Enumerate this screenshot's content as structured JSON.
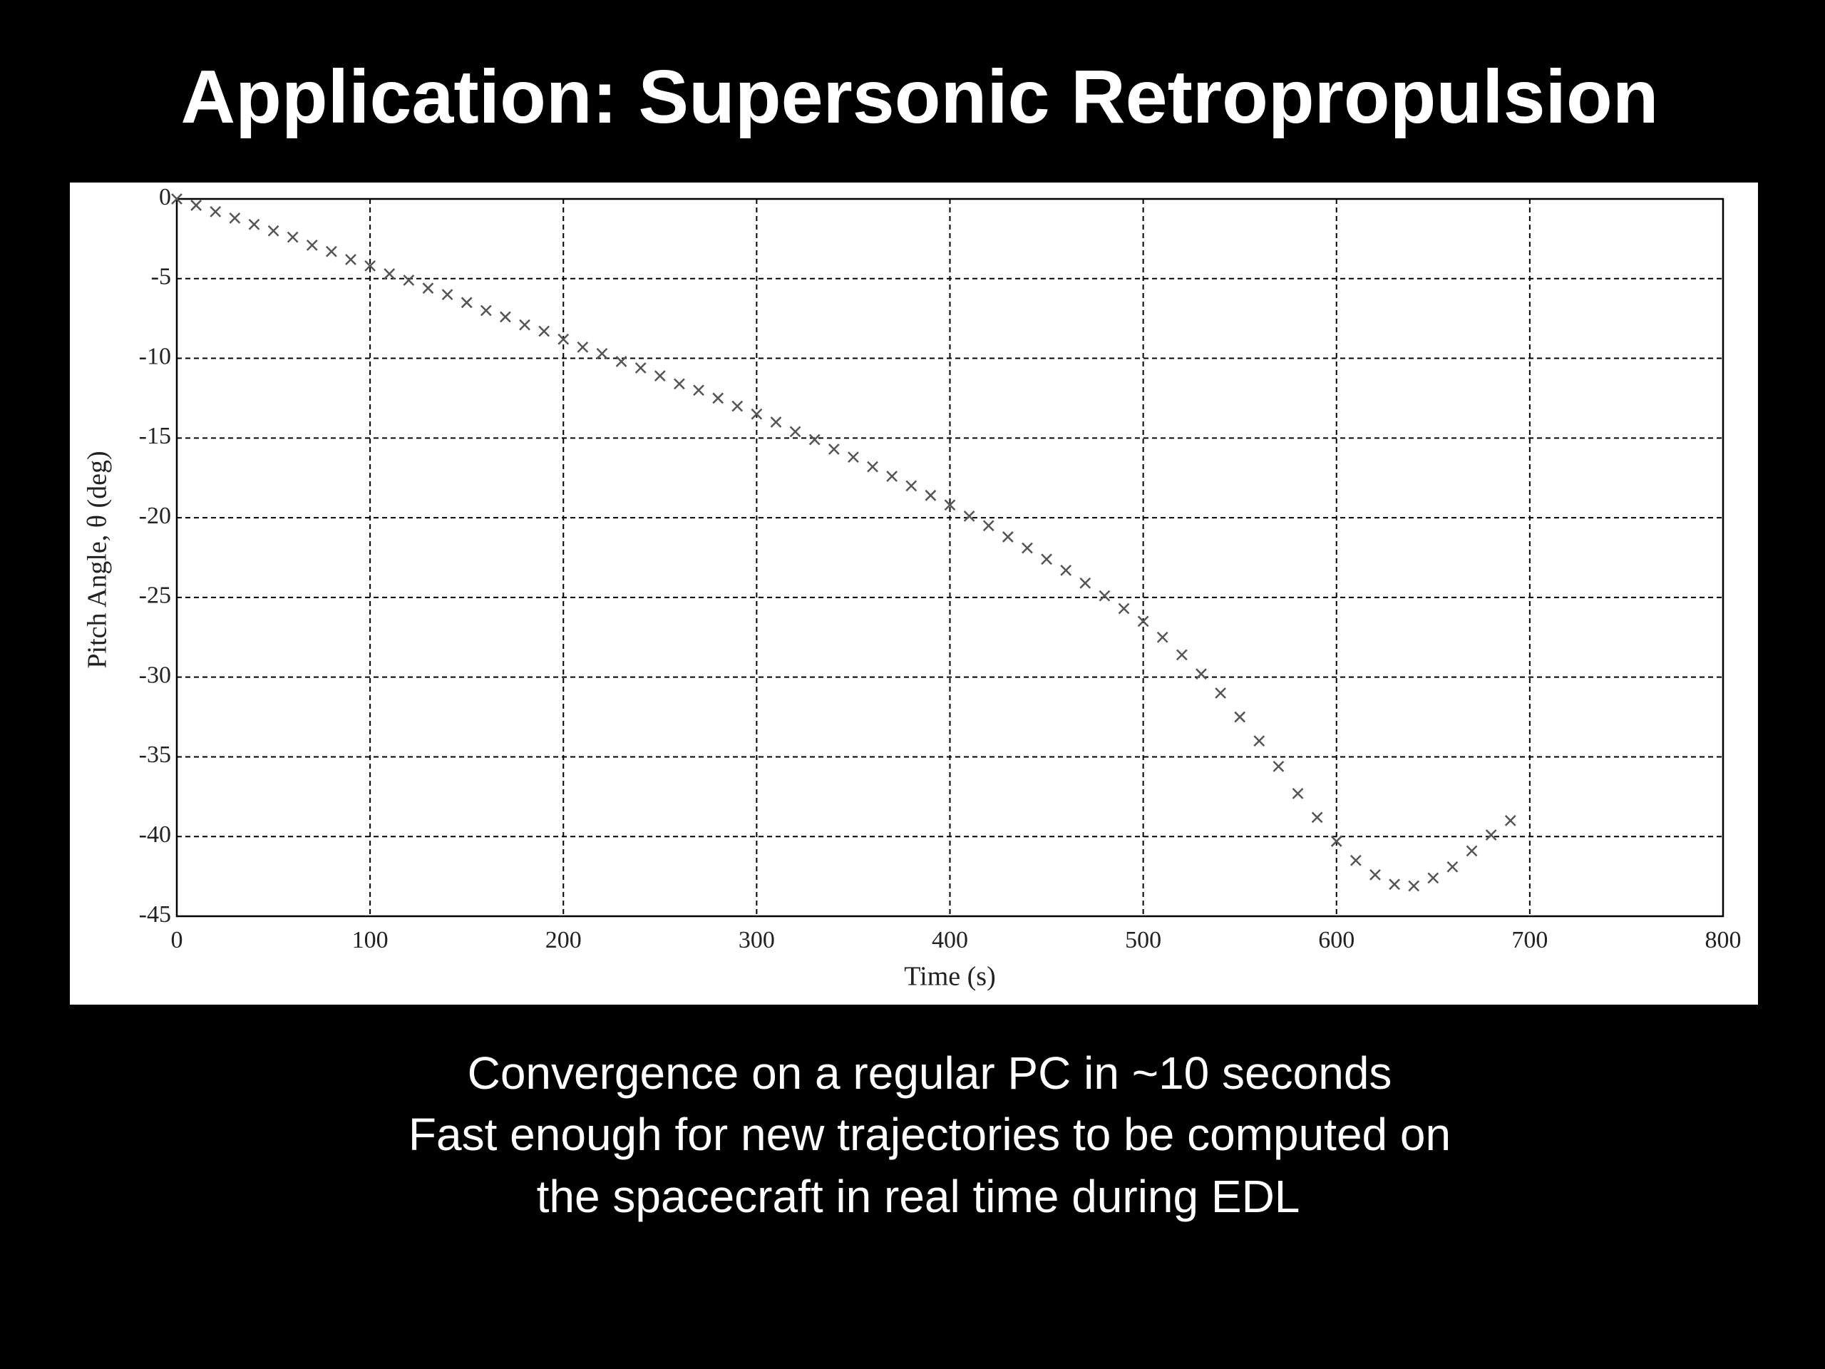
{
  "slide": {
    "title": "Application: Supersonic Retropropulsion",
    "caption": [
      "Convergence on a regular PC in ~10 seconds",
      "Fast enough for new trajectories to be computed on",
      "the spacecraft in real time during EDL"
    ]
  },
  "chart_data": {
    "type": "scatter",
    "xlabel": "Time (s)",
    "ylabel": "Pitch Angle, θ (deg)",
    "x": [
      0,
      10,
      20,
      30,
      40,
      50,
      60,
      70,
      80,
      90,
      100,
      110,
      120,
      130,
      140,
      150,
      160,
      170,
      180,
      190,
      200,
      210,
      220,
      230,
      240,
      250,
      260,
      270,
      280,
      290,
      300,
      310,
      320,
      330,
      340,
      350,
      360,
      370,
      380,
      390,
      400,
      410,
      420,
      430,
      440,
      450,
      460,
      470,
      480,
      490,
      500,
      510,
      520,
      530,
      540,
      550,
      560,
      570,
      580,
      590,
      600,
      610,
      620,
      630,
      640,
      650,
      660,
      670,
      680,
      690
    ],
    "series": [
      {
        "color": "#555555",
        "marker": "x",
        "values": [
          0,
          -0.4,
          -0.8,
          -1.2,
          -1.6,
          -2.0,
          -2.4,
          -2.9,
          -3.3,
          -3.8,
          -4.2,
          -4.7,
          -5.1,
          -5.6,
          -6.0,
          -6.5,
          -7.0,
          -7.4,
          -7.9,
          -8.3,
          -8.8,
          -9.3,
          -9.7,
          -10.2,
          -10.6,
          -11.1,
          -11.6,
          -12.0,
          -12.5,
          -13.0,
          -13.5,
          -14.0,
          -14.6,
          -15.1,
          -15.7,
          -16.2,
          -16.8,
          -17.4,
          -18.0,
          -18.6,
          -19.2,
          -19.9,
          -20.5,
          -21.2,
          -21.9,
          -22.6,
          -23.3,
          -24.1,
          -24.9,
          -25.7,
          -26.5,
          -27.5,
          -28.6,
          -29.8,
          -31.0,
          -32.5,
          -34.0,
          -35.6,
          -37.3,
          -38.8,
          -40.3,
          -41.5,
          -42.4,
          -43.0,
          -43.1,
          -42.6,
          -41.9,
          -40.9,
          -39.9,
          -39.0
        ]
      }
    ],
    "xlim": [
      0,
      800
    ],
    "xticks": [
      0,
      100,
      200,
      300,
      400,
      500,
      600,
      700,
      800
    ],
    "ylim": [
      -45,
      0
    ],
    "yticks": [
      0,
      -5,
      -10,
      -15,
      -20,
      -25,
      -30,
      -35,
      -40,
      -45
    ],
    "grid": true
  }
}
